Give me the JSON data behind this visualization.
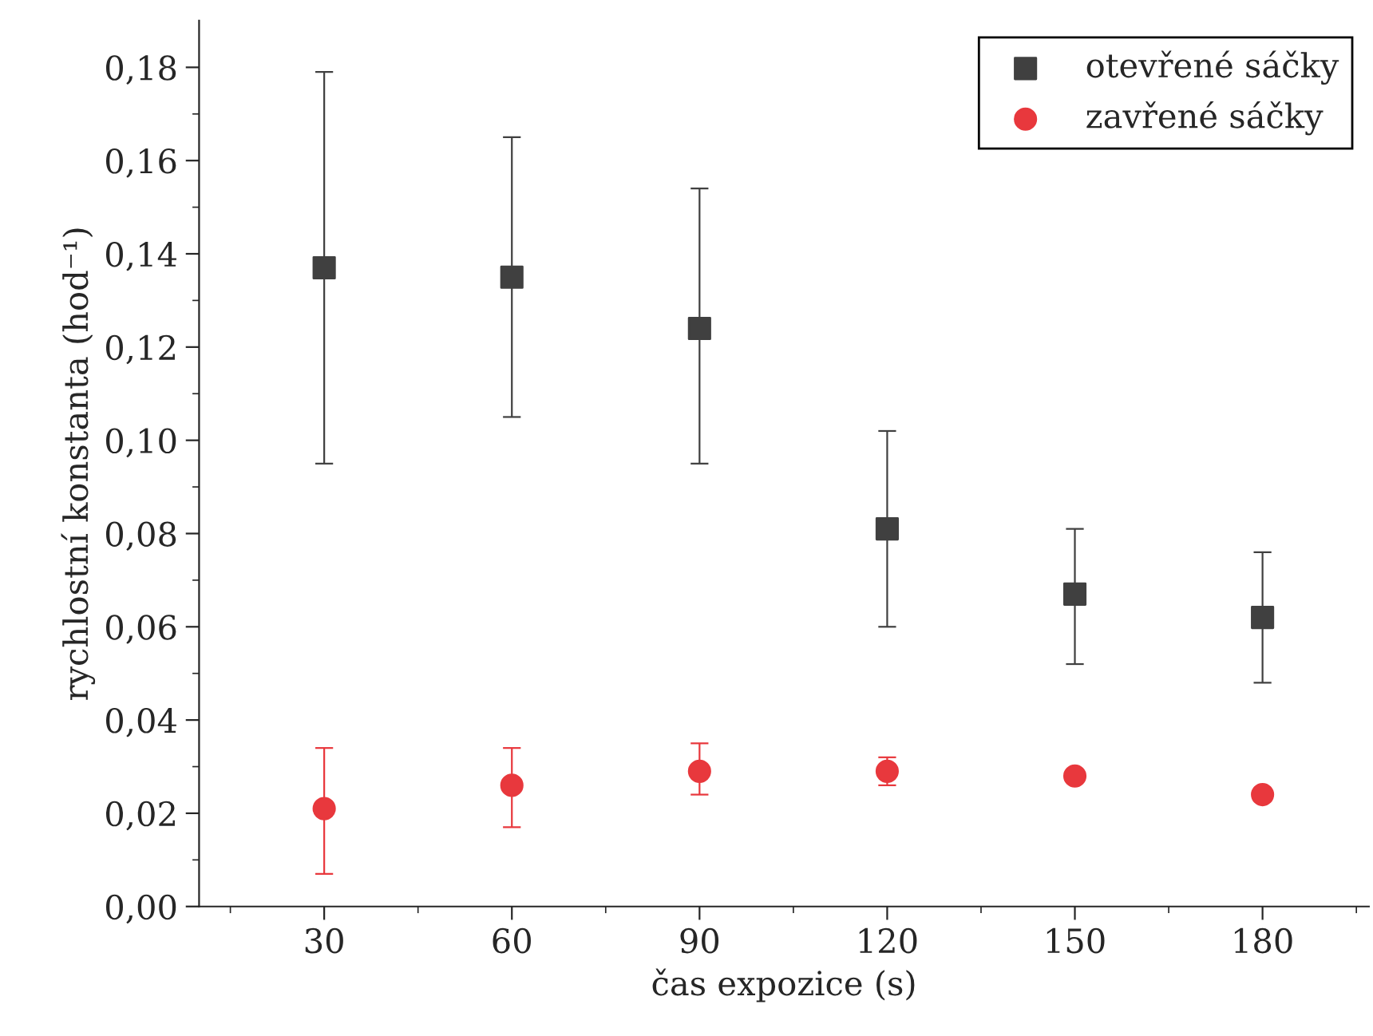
{
  "chart_data": {
    "type": "scatter",
    "xlabel": "čas expozice (s)",
    "ylabel": "rychlostní konstanta (hod⁻¹)",
    "x": [
      30,
      60,
      90,
      120,
      150,
      180
    ],
    "series": [
      {
        "name": "otevřené sáčky",
        "color": "#404040",
        "marker": "square",
        "values": [
          0.137,
          0.135,
          0.124,
          0.081,
          0.067,
          0.062
        ],
        "errors": [
          [
            0.095,
            0.179
          ],
          [
            0.105,
            0.165
          ],
          [
            0.095,
            0.154
          ],
          [
            0.06,
            0.102
          ],
          [
            0.052,
            0.081
          ],
          [
            0.048,
            0.076
          ]
        ]
      },
      {
        "name": "zavřené sáčky",
        "color": "#e8383d",
        "marker": "circle",
        "values": [
          0.021,
          0.026,
          0.029,
          0.029,
          0.028,
          0.024
        ],
        "errors": [
          [
            0.007,
            0.034
          ],
          [
            0.017,
            0.034
          ],
          [
            0.024,
            0.035
          ],
          [
            0.026,
            0.032
          ],
          null,
          null
        ]
      }
    ],
    "xlim": [
      10,
      197
    ],
    "xticks": [
      {
        "value": 15,
        "label": null
      },
      30,
      {
        "value": 45,
        "label": null
      },
      60,
      {
        "value": 75,
        "label": null
      },
      90,
      {
        "value": 105,
        "label": null
      },
      120,
      {
        "value": 135,
        "label": null
      },
      150,
      {
        "value": 165,
        "label": null
      },
      180,
      {
        "value": 195,
        "label": null
      }
    ],
    "ylim": [
      0,
      0.19
    ],
    "yticks": [
      {
        "value": 0,
        "label": "0,00"
      },
      {
        "value": 0.01,
        "label": null
      },
      {
        "value": 0.02,
        "label": "0,02"
      },
      {
        "value": 0.03,
        "label": null
      },
      {
        "value": 0.04,
        "label": "0,04"
      },
      {
        "value": 0.05,
        "label": null
      },
      {
        "value": 0.06,
        "label": "0,06"
      },
      {
        "value": 0.07,
        "label": null
      },
      {
        "value": 0.08,
        "label": "0,08"
      },
      {
        "value": 0.09,
        "label": null
      },
      {
        "value": 0.1,
        "label": "0,10"
      },
      {
        "value": 0.11,
        "label": null
      },
      {
        "value": 0.12,
        "label": "0,12"
      },
      {
        "value": 0.13,
        "label": null
      },
      {
        "value": 0.14,
        "label": "0,14"
      },
      {
        "value": 0.15,
        "label": null
      },
      {
        "value": 0.16,
        "label": "0,16"
      },
      {
        "value": 0.17,
        "label": null
      },
      {
        "value": 0.18,
        "label": "0,18"
      }
    ],
    "grid": false,
    "legend": "top right"
  }
}
